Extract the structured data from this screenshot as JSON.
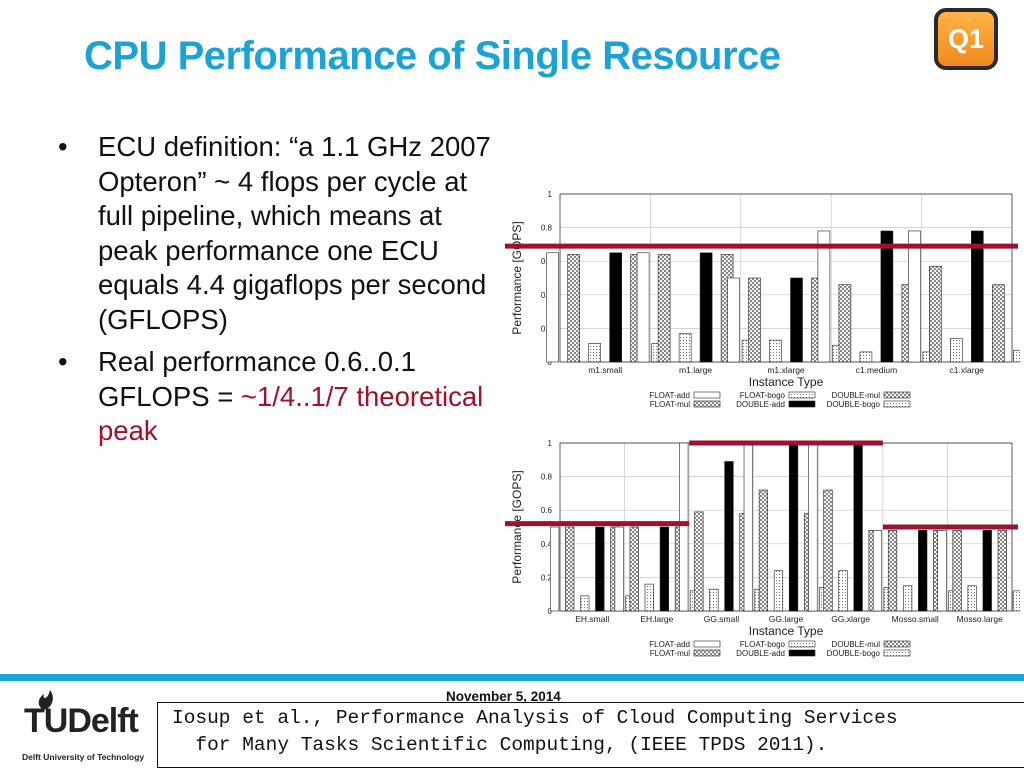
{
  "slide": {
    "title": "CPU Performance of Single Resource",
    "badge": "Q1",
    "bullets": [
      {
        "text": "ECU definition: “a 1.1 GHz 2007 Opteron” ~ 4 flops per cycle at full pipeline, which means at peak performance one ECU equals 4.4 gigaflops per second (GFLOPS)"
      },
      {
        "text": "Real performance 0.6..0.1 GFLOPS = ",
        "highlight": "~1/4..1/7 theoretical peak",
        "highlight_color": "#a3102a"
      }
    ],
    "date": "November 5, 2014",
    "reference_line1": "Iosup et al., Performance Analysis of Cloud Computing Services",
    "reference_line2": "  for Many Tasks Scientific Computing, (IEEE TPDS 2011).",
    "logo_text": "TUDelft",
    "logo_sub": "Delft University of Technology",
    "accent_color": "#1aa4d6"
  },
  "chart_data": [
    {
      "type": "bar",
      "xlabel": "Instance Type",
      "ylabel": "Performance [GOPS]",
      "ylim": [
        0,
        1
      ],
      "yticks": [
        "0",
        "0.2",
        "0.4",
        "0.6",
        "0.8",
        "1"
      ],
      "categories": [
        "m1.small",
        "m1.large",
        "m1.xlarge",
        "c1.medium",
        "c1.xlarge"
      ],
      "series": [
        {
          "name": "FLOAT-add",
          "pattern": "white",
          "values": [
            0.65,
            0.65,
            0.5,
            0.78,
            0.78
          ]
        },
        {
          "name": "FLOAT-mul",
          "pattern": "cross",
          "values": [
            0.64,
            0.64,
            0.5,
            0.46,
            0.57
          ]
        },
        {
          "name": "FLOAT-bogo",
          "pattern": "dots",
          "values": [
            0.11,
            0.17,
            0.13,
            0.06,
            0.14
          ]
        },
        {
          "name": "DOUBLE-add",
          "pattern": "black",
          "values": [
            0.65,
            0.65,
            0.5,
            0.78,
            0.78
          ]
        },
        {
          "name": "DOUBLE-mul",
          "pattern": "cross",
          "values": [
            0.64,
            0.64,
            0.5,
            0.46,
            0.46
          ]
        },
        {
          "name": "DOUBLE-bogo",
          "pattern": "dots",
          "values": [
            0.11,
            0.13,
            0.1,
            0.06,
            0.07
          ]
        }
      ],
      "legend_rows": [
        [
          "FLOAT-add",
          "FLOAT-bogo",
          "DOUBLE-mul"
        ],
        [
          "FLOAT-mul",
          "DOUBLE-add",
          "DOUBLE-bogo"
        ]
      ],
      "reference_lines": [
        {
          "value": 0.69,
          "from": 0,
          "to": 4,
          "color": "#9e1230"
        }
      ],
      "grid": true
    },
    {
      "type": "bar",
      "xlabel": "Instance Type",
      "ylabel": "Performance [GOPS]",
      "ylim": [
        0,
        1
      ],
      "yticks": [
        "0",
        "0.2",
        "0.4",
        "0.6",
        "0.8",
        "1"
      ],
      "categories": [
        "EH.small",
        "EH.large",
        "GG.small",
        "GG.large",
        "GG.xlarge",
        "Mosso.small",
        "Mosso.large"
      ],
      "series": [
        {
          "name": "FLOAT-add",
          "pattern": "white",
          "values": [
            0.5,
            0.5,
            1.0,
            1.0,
            1.0,
            0.48,
            0.48
          ]
        },
        {
          "name": "FLOAT-mul",
          "pattern": "cross",
          "values": [
            0.5,
            0.5,
            0.59,
            0.72,
            0.72,
            0.48,
            0.48
          ]
        },
        {
          "name": "FLOAT-bogo",
          "pattern": "dots",
          "values": [
            0.09,
            0.16,
            0.13,
            0.24,
            0.24,
            0.15,
            0.15
          ]
        },
        {
          "name": "DOUBLE-add",
          "pattern": "black",
          "values": [
            0.5,
            0.5,
            0.89,
            0.99,
            0.99,
            0.48,
            0.48
          ]
        },
        {
          "name": "DOUBLE-mul",
          "pattern": "cross",
          "values": [
            0.5,
            0.5,
            0.58,
            0.58,
            0.48,
            0.48,
            0.48
          ]
        },
        {
          "name": "DOUBLE-bogo",
          "pattern": "dots",
          "values": [
            0.09,
            0.12,
            0.13,
            0.14,
            0.14,
            0.12,
            0.12
          ]
        }
      ],
      "legend_rows": [
        [
          "FLOAT-add",
          "FLOAT-bogo",
          "DOUBLE-mul"
        ],
        [
          "FLOAT-mul",
          "DOUBLE-add",
          "DOUBLE-bogo"
        ]
      ],
      "reference_lines": [
        {
          "value": 0.52,
          "from": 0,
          "to": 1,
          "color": "#9e1230"
        },
        {
          "value": 1.0,
          "from": 2,
          "to": 4,
          "color": "#9e1230"
        },
        {
          "value": 0.5,
          "from": 5,
          "to": 6,
          "color": "#9e1230"
        }
      ],
      "grid": true
    }
  ]
}
